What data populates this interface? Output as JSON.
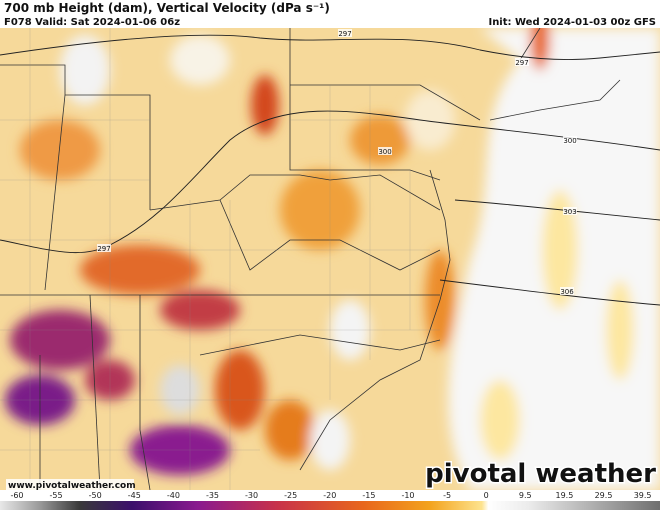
{
  "header": {
    "title": "700 mb Height (dam), Vertical Velocity (dPa s⁻¹)",
    "valid": "F078 Valid: Sat 2024-01-06 06z",
    "init": "Init: Wed 2024-01-03 00z GFS"
  },
  "map": {
    "contour_labels": [
      "297",
      "297",
      "297",
      "300",
      "300",
      "303",
      "306"
    ]
  },
  "footer": {
    "url": "www.pivotalweather.com",
    "logo": "pivotal weather"
  },
  "colorbar": {
    "labels": [
      -60,
      -55,
      -50,
      -45,
      -40,
      -35,
      -30,
      -25,
      -20,
      -15,
      -10,
      -5,
      0,
      9.5,
      19.5,
      29.5,
      39.5
    ]
  }
}
